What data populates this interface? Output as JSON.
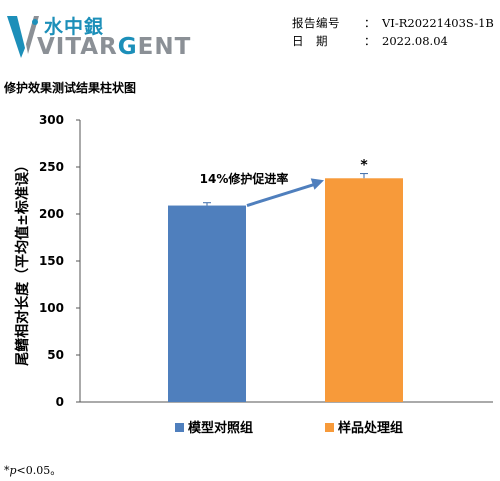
{
  "header": {
    "logo_cn": "水中銀",
    "logo_word_parts": [
      "VITAR",
      "G",
      "ENT"
    ],
    "report_no_label": "报告编号",
    "report_no_value": "VI-R20221403S-1B",
    "date_label": "日　期",
    "date_value": "2022.08.04",
    "colon": "："
  },
  "chart_data": {
    "type": "bar",
    "title": "修护效果测试结果柱状图",
    "ylabel": "尾鳍相对长度（平均值±标准误）",
    "xlabel": "",
    "ylim": [
      0,
      300
    ],
    "yticks": [
      0,
      50,
      100,
      150,
      200,
      250,
      300
    ],
    "categories": [
      "模型对照组",
      "样品处理组"
    ],
    "values": [
      209,
      238
    ],
    "errors": [
      3,
      5
    ],
    "colors": [
      "#4f7fbd",
      "#f79a3a"
    ],
    "significance": [
      "",
      "*"
    ],
    "annotation": "14%修护促进率",
    "arrow_color": "#4f7fbd",
    "legend": [
      "模型对照组",
      "样品处理组"
    ],
    "legend_position": "bottom",
    "grid": false
  },
  "footnote": {
    "symbol": "*",
    "p": "p",
    "rest": "<0.05。"
  }
}
